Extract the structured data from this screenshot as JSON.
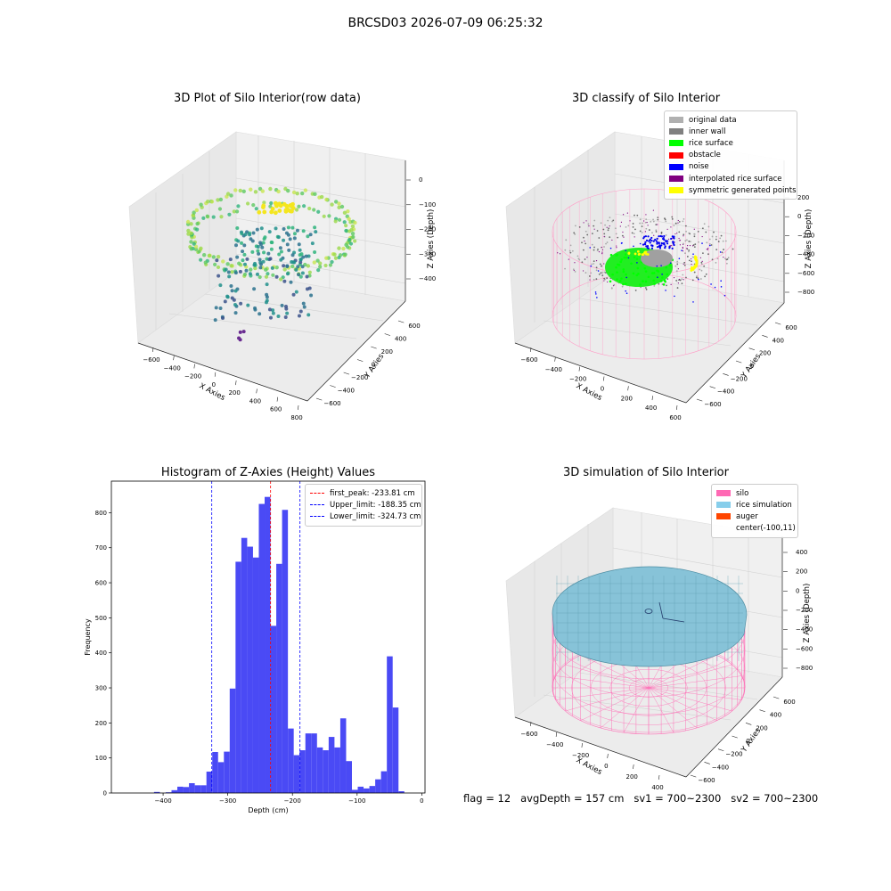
{
  "suptitle": "BRCSD03 2026-07-09 06:25:32",
  "panel1": {
    "title": "3D Plot of Silo Interior(row data)",
    "xlabel": "X Axies",
    "ylabel": "Y Axies",
    "zlabel": "Z Axies (Depth)",
    "xticks": [
      "−600",
      "−400",
      "−200",
      "0",
      "200",
      "400",
      "600",
      "800"
    ],
    "yticks": [
      "−600",
      "−400",
      "−200",
      "0",
      "200",
      "400",
      "600"
    ],
    "zticks": [
      "0",
      "−100",
      "−200",
      "−300",
      "−400"
    ]
  },
  "panel2": {
    "title": "3D classify of Silo Interior",
    "xlabel": "X Axies",
    "ylabel": "Y Axies",
    "zlabel": "Z Axies (Depth)",
    "xticks": [
      "−600",
      "−400",
      "−200",
      "0",
      "200",
      "400",
      "600"
    ],
    "yticks": [
      "−600",
      "−400",
      "−200",
      "0",
      "200",
      "400",
      "600"
    ],
    "zticks": [
      "200",
      "0",
      "−200",
      "−400",
      "−600",
      "−800"
    ],
    "legend": [
      {
        "label": "original data",
        "color": "#b0b0b0"
      },
      {
        "label": "inner wall",
        "color": "#808080"
      },
      {
        "label": "rice surface",
        "color": "#00ff00"
      },
      {
        "label": "obstacle",
        "color": "#ff0000"
      },
      {
        "label": "noise",
        "color": "#0000ff"
      },
      {
        "label": "interpolated rice surface",
        "color": "#800080"
      },
      {
        "label": "symmetric generated points",
        "color": "#ffff00"
      }
    ]
  },
  "panel3": {
    "title": "Histogram of Z-Axies (Height) Values",
    "legend": [
      {
        "label": "first_peak: -233.81 cm",
        "color": "#ff0000"
      },
      {
        "label": "Upper_limit: -188.35 cm",
        "color": "#0000ff"
      },
      {
        "label": "Lower_limit: -324.73 cm",
        "color": "#0000ff"
      }
    ]
  },
  "panel4": {
    "title": "3D simulation of Silo Interior",
    "xlabel": "X Axies",
    "ylabel": "Y Axies",
    "zlabel": "Z Axies (Depth)",
    "xticks": [
      "−600",
      "−400",
      "−200",
      "0",
      "200",
      "400"
    ],
    "yticks": [
      "−600",
      "−400",
      "−200",
      "0",
      "200",
      "400",
      "600"
    ],
    "zticks": [
      "400",
      "200",
      "0",
      "−200",
      "−400",
      "−600",
      "−800"
    ],
    "legend": [
      {
        "label": "silo",
        "color": "#ff69b4"
      },
      {
        "label": "rice simulation",
        "color": "#87ceeb"
      },
      {
        "label": "auger",
        "color": "#ff4500"
      },
      {
        "label": "center(-100,11)",
        "color": "none"
      }
    ]
  },
  "footer": "flag = 12   avgDepth = 157 cm   sv1 = 700~2300   sv2 = 700~2300",
  "chart_data": [
    {
      "type": "histogram",
      "title": "Histogram of Z-Axies (Height) Values",
      "xlabel": "Depth (cm)",
      "ylabel": "Frequency",
      "xlim": [
        -480,
        5
      ],
      "ylim": [
        0,
        890
      ],
      "xticks": [
        -400,
        -300,
        -200,
        -100,
        0
      ],
      "yticks": [
        0,
        100,
        200,
        300,
        400,
        500,
        600,
        700,
        800
      ],
      "bin_width": 8.7,
      "bins": [
        {
          "x0": -423,
          "x1": -414,
          "v": 0
        },
        {
          "x0": -414,
          "x1": -405,
          "v": 3
        },
        {
          "x0": -405,
          "x1": -396,
          "v": 0
        },
        {
          "x0": -396,
          "x1": -387,
          "v": 2
        },
        {
          "x0": -387,
          "x1": -378,
          "v": 8
        },
        {
          "x0": -378,
          "x1": -369,
          "v": 18
        },
        {
          "x0": -369,
          "x1": -360,
          "v": 17
        },
        {
          "x0": -360,
          "x1": -351,
          "v": 28
        },
        {
          "x0": -351,
          "x1": -342,
          "v": 22
        },
        {
          "x0": -342,
          "x1": -333,
          "v": 22
        },
        {
          "x0": -333,
          "x1": -324,
          "v": 61
        },
        {
          "x0": -324,
          "x1": -315,
          "v": 117
        },
        {
          "x0": -315,
          "x1": -306,
          "v": 88
        },
        {
          "x0": -306,
          "x1": -297,
          "v": 118
        },
        {
          "x0": -297,
          "x1": -288,
          "v": 298
        },
        {
          "x0": -288,
          "x1": -279,
          "v": 660
        },
        {
          "x0": -279,
          "x1": -270,
          "v": 728
        },
        {
          "x0": -270,
          "x1": -261,
          "v": 703
        },
        {
          "x0": -261,
          "x1": -252,
          "v": 672
        },
        {
          "x0": -252,
          "x1": -243,
          "v": 825
        },
        {
          "x0": -243,
          "x1": -234,
          "v": 845
        },
        {
          "x0": -234,
          "x1": -225,
          "v": 477
        },
        {
          "x0": -225,
          "x1": -216,
          "v": 654
        },
        {
          "x0": -216,
          "x1": -207,
          "v": 808
        },
        {
          "x0": -207,
          "x1": -198,
          "v": 184
        },
        {
          "x0": -198,
          "x1": -189,
          "v": 108
        },
        {
          "x0": -189,
          "x1": -180,
          "v": 122
        },
        {
          "x0": -180,
          "x1": -171,
          "v": 170
        },
        {
          "x0": -171,
          "x1": -162,
          "v": 170
        },
        {
          "x0": -162,
          "x1": -153,
          "v": 130
        },
        {
          "x0": -153,
          "x1": -144,
          "v": 122
        },
        {
          "x0": -144,
          "x1": -135,
          "v": 160
        },
        {
          "x0": -135,
          "x1": -126,
          "v": 130
        },
        {
          "x0": -126,
          "x1": -117,
          "v": 213
        },
        {
          "x0": -117,
          "x1": -108,
          "v": 91
        },
        {
          "x0": -108,
          "x1": -99,
          "v": 9
        },
        {
          "x0": -99,
          "x1": -90,
          "v": 18
        },
        {
          "x0": -90,
          "x1": -81,
          "v": 13
        },
        {
          "x0": -81,
          "x1": -72,
          "v": 20
        },
        {
          "x0": -72,
          "x1": -63,
          "v": 39
        },
        {
          "x0": -63,
          "x1": -54,
          "v": 62
        },
        {
          "x0": -54,
          "x1": -45,
          "v": 390
        },
        {
          "x0": -45,
          "x1": -36,
          "v": 244
        },
        {
          "x0": -36,
          "x1": -27,
          "v": 5
        }
      ],
      "color": "#4a4af5",
      "vlines": [
        {
          "name": "first_peak: -233.81 cm",
          "x": -233.81,
          "color": "#ff0000"
        },
        {
          "name": "Upper_limit: -188.35 cm",
          "x": -188.35,
          "color": "#0000ff"
        },
        {
          "name": "Lower_limit: -324.73 cm",
          "x": -324.73,
          "color": "#0000ff"
        }
      ],
      "legend_position": "top-right"
    }
  ]
}
